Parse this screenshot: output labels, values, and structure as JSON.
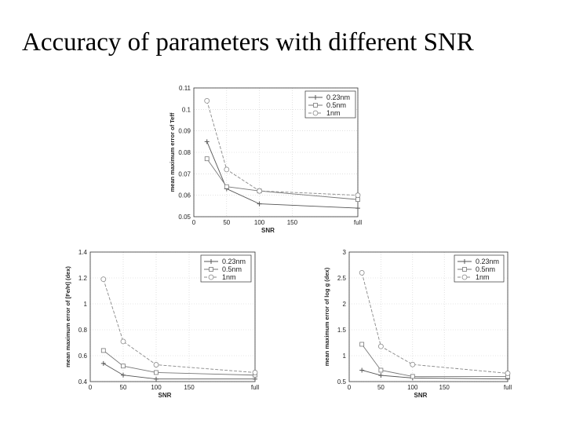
{
  "title": "Accuracy of parameters with different SNR",
  "chart_data": [
    {
      "type": "line",
      "xlabel": "SNR",
      "ylabel": "mean maximum error of Teff",
      "xlim": [
        0,
        250
      ],
      "ylim": [
        0.05,
        0.11
      ],
      "x_ticks": [
        0,
        50,
        100,
        150,
        250
      ],
      "x_tick_labels": [
        "0",
        "50",
        "100",
        "150",
        "full"
      ],
      "y_ticks": [
        0.05,
        0.06,
        0.07,
        0.08,
        0.09,
        0.1,
        0.11
      ],
      "y_tick_labels": [
        "0.05",
        "0.06",
        "0.07",
        "0.08",
        "0.09",
        "0.1",
        "0.11"
      ],
      "x": [
        20,
        50,
        100,
        250
      ],
      "legend": "top-right",
      "series": [
        {
          "name": "0.23nm",
          "marker": "plus",
          "values": [
            0.085,
            0.063,
            0.056,
            0.054
          ]
        },
        {
          "name": "0.5nm",
          "marker": "square",
          "values": [
            0.077,
            0.064,
            0.062,
            0.058
          ]
        },
        {
          "name": "1nm",
          "marker": "circle",
          "values": [
            0.104,
            0.072,
            0.062,
            0.06
          ]
        }
      ]
    },
    {
      "type": "line",
      "xlabel": "SNR",
      "ylabel": "mean maximum error of [Fe/H] (dex)",
      "xlim": [
        0,
        250
      ],
      "ylim": [
        0.4,
        1.4
      ],
      "x_ticks": [
        0,
        50,
        100,
        150,
        250
      ],
      "x_tick_labels": [
        "0",
        "50",
        "100",
        "150",
        "full"
      ],
      "y_ticks": [
        0.4,
        0.6,
        0.8,
        1.0,
        1.2,
        1.4
      ],
      "y_tick_labels": [
        "0.4",
        "0.6",
        "0.8",
        "1",
        "1.2",
        "1.4"
      ],
      "x": [
        20,
        50,
        100,
        250
      ],
      "legend": "top-right",
      "series": [
        {
          "name": "0.23nm",
          "marker": "plus",
          "values": [
            0.54,
            0.45,
            0.42,
            0.42
          ]
        },
        {
          "name": "0.5nm",
          "marker": "square",
          "values": [
            0.64,
            0.52,
            0.47,
            0.45
          ]
        },
        {
          "name": "1nm",
          "marker": "circle",
          "values": [
            1.19,
            0.71,
            0.53,
            0.47
          ]
        }
      ]
    },
    {
      "type": "line",
      "xlabel": "SNR",
      "ylabel": "mean maximum error of log g (dex)",
      "xlim": [
        0,
        250
      ],
      "ylim": [
        0.5,
        3
      ],
      "x_ticks": [
        0,
        50,
        100,
        150,
        250
      ],
      "x_tick_labels": [
        "0",
        "50",
        "100",
        "150",
        "full"
      ],
      "y_ticks": [
        0.5,
        1,
        1.5,
        2,
        2.5,
        3
      ],
      "y_tick_labels": [
        "0.5",
        "1",
        "1.5",
        "2",
        "2.5",
        "3"
      ],
      "x": [
        20,
        50,
        100,
        250
      ],
      "legend": "top-right",
      "series": [
        {
          "name": "0.23nm",
          "marker": "plus",
          "values": [
            0.72,
            0.62,
            0.57,
            0.55
          ]
        },
        {
          "name": "0.5nm",
          "marker": "square",
          "values": [
            1.22,
            0.72,
            0.6,
            0.6
          ]
        },
        {
          "name": "1nm",
          "marker": "circle",
          "values": [
            2.6,
            1.18,
            0.83,
            0.66
          ]
        }
      ]
    }
  ]
}
